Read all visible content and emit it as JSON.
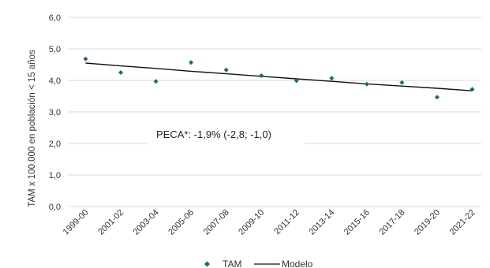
{
  "chart_data": {
    "type": "scatter",
    "categories": [
      "1999-00",
      "2001-02",
      "2003-04",
      "2005-06",
      "2007-08",
      "2009-10",
      "2011-12",
      "2013-14",
      "2015-16",
      "2017-18",
      "2019-20",
      "2021-22"
    ],
    "series": [
      {
        "name": "TAM",
        "kind": "points",
        "values": [
          4.68,
          4.25,
          3.97,
          4.57,
          4.33,
          4.15,
          3.99,
          4.07,
          3.88,
          3.93,
          3.47,
          3.72
        ],
        "color": "#1a6b63"
      },
      {
        "name": "Modelo",
        "kind": "line",
        "values": [
          4.55,
          4.46,
          4.38,
          4.29,
          4.21,
          4.13,
          4.05,
          3.97,
          3.89,
          3.82,
          3.75,
          3.67
        ],
        "color": "#111111"
      }
    ],
    "xlabel": "",
    "ylabel": "TAM x 100.000 en población < 15 años",
    "ylim": [
      0,
      6
    ],
    "yticks": [
      "0,0",
      "1,0",
      "2,0",
      "3,0",
      "4,0",
      "5,0",
      "6,0"
    ],
    "grid": true,
    "legend_position": "bottom",
    "annotation": "PECA*: -1,9% (-2,8; -1,0)"
  }
}
